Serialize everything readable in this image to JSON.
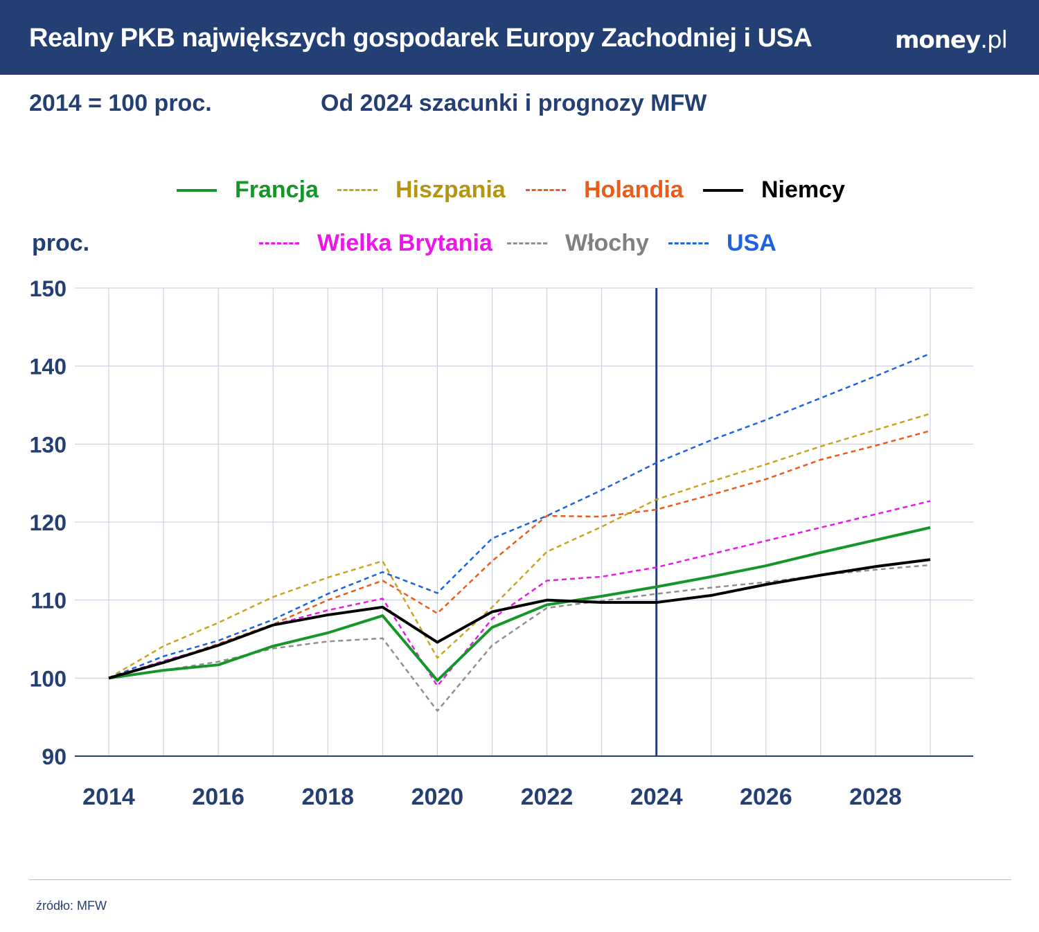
{
  "header": {
    "title": "Realny PKB największych gospodarek Europy Zachodniej i USA",
    "logo": "money.pl"
  },
  "subtitle_left": "2014 = 100 proc.",
  "subtitle_right": "Od 2024 szacunki i prognozy MFW",
  "footer": {
    "source": "źródło: MFW"
  },
  "chart_data": {
    "type": "line",
    "title": "Realny PKB największych gospodarek Europy Zachodniej i USA",
    "ylabel": "proc.",
    "ylim": [
      90,
      150
    ],
    "yticks": [
      90,
      100,
      110,
      120,
      130,
      140,
      150
    ],
    "xlim": [
      2014,
      2029
    ],
    "xticks": [
      2014,
      2016,
      2018,
      2020,
      2022,
      2024,
      2026,
      2028
    ],
    "grid": true,
    "vertical_marker": 2024,
    "legend_placement": "top",
    "x": [
      2014,
      2015,
      2016,
      2017,
      2018,
      2019,
      2020,
      2021,
      2022,
      2023,
      2024,
      2025,
      2026,
      2027,
      2028,
      2029
    ],
    "series": [
      {
        "name": "Francja",
        "color": "#16962a",
        "dashed": false,
        "values": [
          100,
          101.0,
          101.7,
          104.1,
          105.8,
          108.0,
          99.7,
          106.5,
          109.4,
          110.5,
          111.7,
          113.0,
          114.4,
          116.1,
          117.7,
          119.3
        ]
      },
      {
        "name": "Hiszpania",
        "color": "#c9a41a",
        "dashed": true,
        "values": [
          100,
          104.1,
          107.1,
          110.4,
          112.9,
          115.0,
          102.6,
          109.1,
          116.2,
          119.4,
          122.9,
          125.2,
          127.4,
          129.7,
          131.8,
          133.9
        ]
      },
      {
        "name": "Holandia",
        "color": "#ec5b1a",
        "dashed": true,
        "values": [
          100,
          102.0,
          104.4,
          106.9,
          110.0,
          112.5,
          108.3,
          115.0,
          120.8,
          120.7,
          121.6,
          123.5,
          125.5,
          128.0,
          129.8,
          131.7
        ]
      },
      {
        "name": "Niemcy",
        "color": "#000000",
        "dashed": false,
        "values": [
          100,
          102.0,
          104.2,
          106.8,
          108.1,
          109.1,
          104.6,
          108.5,
          110.0,
          109.7,
          109.7,
          110.6,
          112.0,
          113.2,
          114.3,
          115.2
        ]
      },
      {
        "name": "Wielka Brytania",
        "color": "#ec16e8",
        "dashed": true,
        "values": [
          100,
          102.2,
          104.2,
          106.8,
          108.7,
          110.2,
          99.0,
          107.6,
          112.5,
          113.0,
          114.2,
          115.9,
          117.6,
          119.3,
          121.0,
          122.7
        ]
      },
      {
        "name": "Włochy",
        "color": "#8f8f8f",
        "dashed": true,
        "values": [
          100,
          101.0,
          102.1,
          103.8,
          104.7,
          105.1,
          95.8,
          104.2,
          109.0,
          109.9,
          110.8,
          111.6,
          112.3,
          113.2,
          113.9,
          114.5
        ]
      },
      {
        "name": "USA",
        "color": "#1d62e0",
        "dashed": true,
        "values": [
          100,
          102.8,
          104.8,
          107.5,
          110.8,
          113.6,
          110.9,
          117.9,
          120.8,
          124.1,
          127.6,
          130.5,
          133.1,
          135.9,
          138.7,
          141.6
        ]
      }
    ]
  }
}
